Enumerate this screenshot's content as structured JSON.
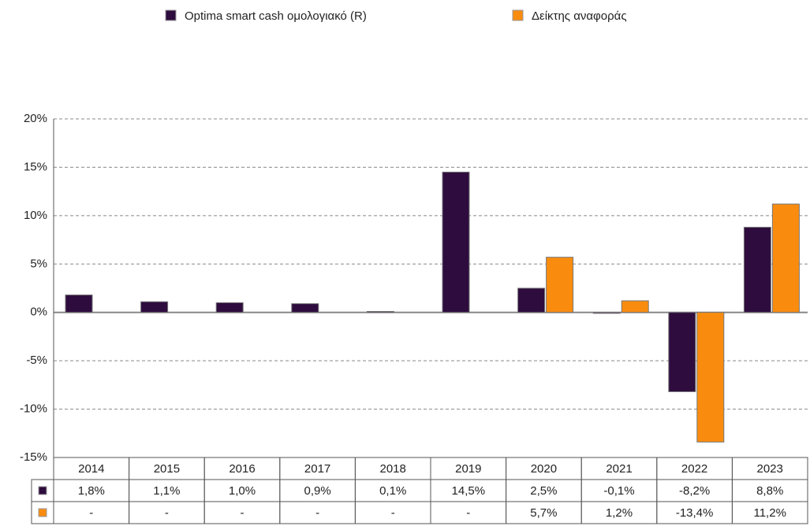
{
  "chart_data": {
    "type": "bar",
    "categories": [
      "2014",
      "2015",
      "2016",
      "2017",
      "2018",
      "2019",
      "2020",
      "2021",
      "2022",
      "2023"
    ],
    "series": [
      {
        "name": "Optima smart cash ομολογιακό (R)",
        "color": "#2e0c3e",
        "values": [
          1.8,
          1.1,
          1.0,
          0.9,
          0.1,
          14.5,
          2.5,
          -0.1,
          -8.2,
          8.8
        ],
        "value_labels": [
          "1,8%",
          "1,1%",
          "1,0%",
          "0,9%",
          "0,1%",
          "14,5%",
          "2,5%",
          "-0,1%",
          "-8,2%",
          "8,8%"
        ]
      },
      {
        "name": "Δείκτης αναφοράς",
        "color": "#f98c0f",
        "values": [
          null,
          null,
          null,
          null,
          null,
          null,
          5.7,
          1.2,
          -13.4,
          11.2
        ],
        "value_labels": [
          "-",
          "-",
          "-",
          "-",
          "-",
          "-",
          "5,7%",
          "1,2%",
          "-13,4%",
          "11,2%"
        ]
      }
    ],
    "ylim": [
      -15,
      20
    ],
    "yticks": [
      {
        "value": -15,
        "label": "-15%"
      },
      {
        "value": -10,
        "label": "-10%"
      },
      {
        "value": -5,
        "label": "-5%"
      },
      {
        "value": 0,
        "label": "0%"
      },
      {
        "value": 5,
        "label": "5%"
      },
      {
        "value": 10,
        "label": "10%"
      },
      {
        "value": 15,
        "label": "15%"
      },
      {
        "value": 20,
        "label": "20%"
      }
    ],
    "grid": true,
    "legend": "top"
  }
}
